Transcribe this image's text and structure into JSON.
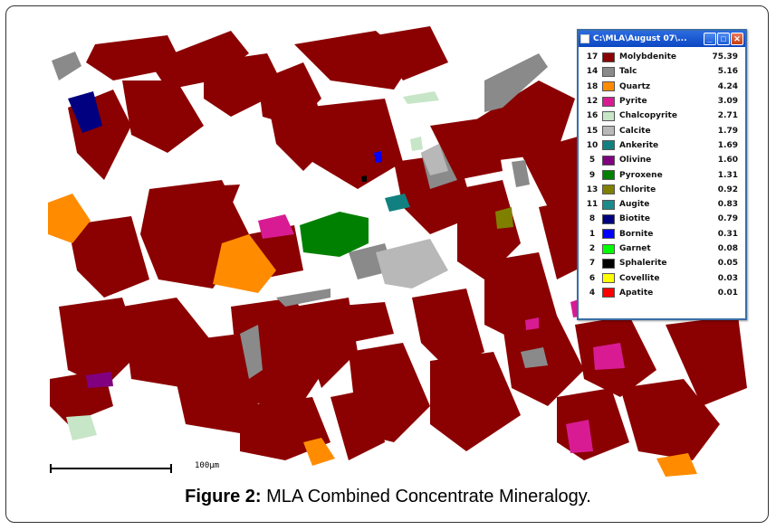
{
  "legend_window": {
    "title": "C:\\MLA\\August 07\\...",
    "buttons": {
      "minimize": "_",
      "maximize": "□",
      "close": "✕"
    },
    "rows": [
      {
        "id": "17",
        "name": "Molybdenite",
        "pct": "75.39",
        "color": "#8b0000"
      },
      {
        "id": "14",
        "name": "Talc",
        "pct": "5.16",
        "color": "#8a8a8a"
      },
      {
        "id": "18",
        "name": "Quartz",
        "pct": "4.24",
        "color": "#ff8c00"
      },
      {
        "id": "12",
        "name": "Pyrite",
        "pct": "3.09",
        "color": "#d81b93"
      },
      {
        "id": "16",
        "name": "Chalcopyrite",
        "pct": "2.71",
        "color": "#c7e5c7"
      },
      {
        "id": "15",
        "name": "Calcite",
        "pct": "1.79",
        "color": "#b8b8b8"
      },
      {
        "id": "10",
        "name": "Ankerite",
        "pct": "1.69",
        "color": "#118080"
      },
      {
        "id": "5",
        "name": "Olivine",
        "pct": "1.60",
        "color": "#800080"
      },
      {
        "id": "9",
        "name": "Pyroxene",
        "pct": "1.31",
        "color": "#008000"
      },
      {
        "id": "13",
        "name": "Chlorite",
        "pct": "0.92",
        "color": "#808000"
      },
      {
        "id": "11",
        "name": "Augite",
        "pct": "0.83",
        "color": "#1a8a8a"
      },
      {
        "id": "8",
        "name": "Biotite",
        "pct": "0.79",
        "color": "#000080"
      },
      {
        "id": "1",
        "name": "Bornite",
        "pct": "0.31",
        "color": "#0000ff"
      },
      {
        "id": "2",
        "name": "Garnet",
        "pct": "0.08",
        "color": "#00ff00"
      },
      {
        "id": "7",
        "name": "Sphalerite",
        "pct": "0.05",
        "color": "#000000"
      },
      {
        "id": "6",
        "name": "Covellite",
        "pct": "0.03",
        "color": "#ffff00"
      },
      {
        "id": "4",
        "name": "Apatite",
        "pct": "0.01",
        "color": "#ff0000"
      }
    ]
  },
  "scale_label": "100μm",
  "caption": {
    "label": "Figure 2:",
    "text": " MLA Combined Concentrate Mineralogy."
  }
}
